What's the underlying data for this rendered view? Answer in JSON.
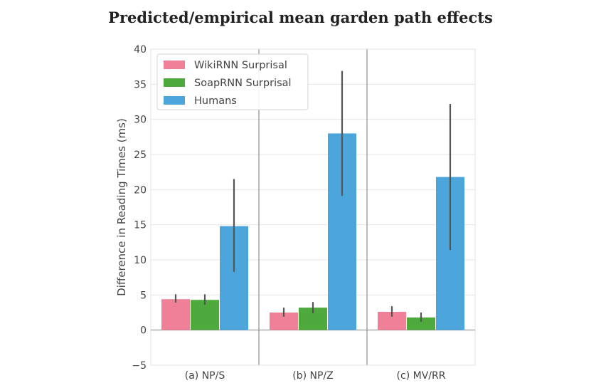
{
  "chart_data": {
    "type": "bar",
    "title": "Predicted/empirical mean garden path effects",
    "xlabel": "",
    "ylabel": "Difference in Reading Times (ms)",
    "ylim": [
      -5,
      40
    ],
    "yticks": [
      -5,
      0,
      5,
      10,
      15,
      20,
      25,
      30,
      35,
      40
    ],
    "ytick_labels": [
      "−5",
      "0",
      "5",
      "10",
      "15",
      "20",
      "25",
      "30",
      "35",
      "40"
    ],
    "categories": [
      "(a) NP/S",
      "(b) NP/Z",
      "(c) MV/RR"
    ],
    "series": [
      {
        "name": "WikiRNN Surprisal",
        "color": "#f08098",
        "values": [
          4.4,
          2.5,
          2.6
        ],
        "err_low": [
          3.9,
          1.9,
          1.9
        ],
        "err_high": [
          5.1,
          3.2,
          3.4
        ]
      },
      {
        "name": "SoapRNN Surprisal",
        "color": "#4faa3e",
        "values": [
          4.3,
          3.2,
          1.8
        ],
        "err_low": [
          3.6,
          2.4,
          1.2
        ],
        "err_high": [
          5.1,
          4.0,
          2.5
        ]
      },
      {
        "name": "Humans",
        "color": "#4ca6dc",
        "values": [
          14.8,
          28.0,
          21.8
        ],
        "err_low": [
          8.3,
          19.1,
          11.4
        ],
        "err_high": [
          21.5,
          36.9,
          32.2
        ]
      }
    ],
    "grid": true,
    "legend_position": "top-left"
  }
}
